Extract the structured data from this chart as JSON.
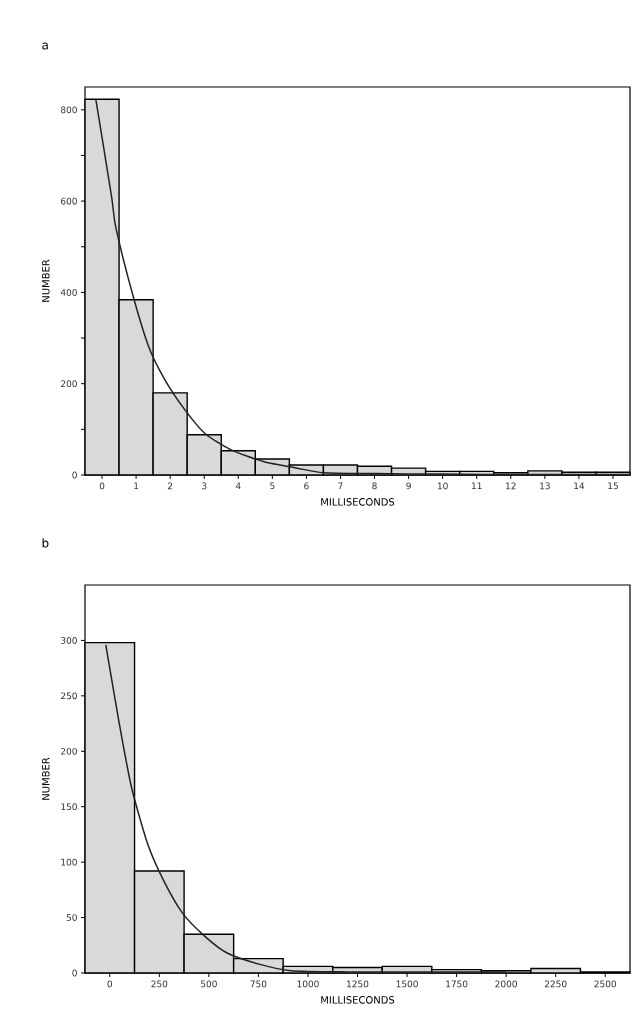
{
  "chart_data": [
    {
      "type": "histogram",
      "title": "a",
      "xlabel": "MILLISECONDS",
      "ylabel": "NUMBER",
      "color": "#d9d9d9",
      "bins": [
        -0.5,
        0.5,
        1.5,
        2.5,
        3.5,
        4.5,
        5.5,
        6.5,
        7.5,
        8.5,
        9.5,
        10.5,
        11.5,
        12.5,
        13.5,
        14.5,
        15.5
      ],
      "values": [
        823,
        384,
        180,
        88,
        53,
        35,
        22,
        22,
        19,
        15,
        8,
        8,
        5,
        9,
        6,
        6
      ],
      "series": [
        {
          "type": "line",
          "color": "#222222",
          "x": [
            -0.18,
            0.28,
            0.4,
            0.89,
            1.37,
            1.85,
            2.44,
            3.02,
            3.79,
            4.76,
            5.73,
            6.5,
            8,
            10,
            12,
            15.5
          ],
          "values": [
            822,
            610,
            544,
            398,
            281,
            208,
            142,
            91,
            55,
            29,
            15,
            5,
            3,
            2,
            1,
            1
          ]
        }
      ],
      "xlim": [
        -0.5,
        15.5
      ],
      "ylim": [
        0,
        850
      ],
      "xticks": [
        0,
        1,
        2,
        3,
        4,
        5,
        6,
        7,
        8,
        9,
        10,
        11,
        12,
        13,
        14,
        15
      ],
      "yticks": [
        0,
        {
          "value": 100,
          "label": null
        },
        200,
        {
          "value": 300,
          "label": null
        },
        400,
        {
          "value": 500,
          "label": null
        },
        600,
        {
          "value": 700,
          "label": null
        },
        800
      ],
      "grid": false
    },
    {
      "type": "histogram",
      "title": "b",
      "xlabel": "MILLISECONDS",
      "ylabel": "NUMBER",
      "color": "#d9d9d9",
      "bins": [
        -125,
        125,
        375,
        625,
        875,
        1125,
        1375,
        1625,
        1875,
        2125,
        2375,
        2625
      ],
      "values": [
        298,
        92,
        35,
        13,
        6,
        5,
        6,
        3,
        2,
        4,
        1
      ],
      "series": [
        {
          "type": "line",
          "color": "#222222",
          "x": [
            -20,
            44,
            109,
            190,
            270,
            367,
            480,
            592,
            753,
            915,
            1200,
            1600,
            2000
          ],
          "values": [
            296,
            229,
            168,
            117,
            84,
            54,
            33,
            18,
            8,
            2,
            1,
            1,
            1
          ]
        }
      ],
      "xlim": [
        -125,
        2625
      ],
      "ylim": [
        0,
        350
      ],
      "xticks": [
        0,
        250,
        500,
        750,
        1000,
        1250,
        1500,
        1750,
        2000,
        2250,
        2500
      ],
      "yticks": [
        0,
        50,
        100,
        150,
        200,
        250,
        300
      ],
      "grid": false
    }
  ]
}
